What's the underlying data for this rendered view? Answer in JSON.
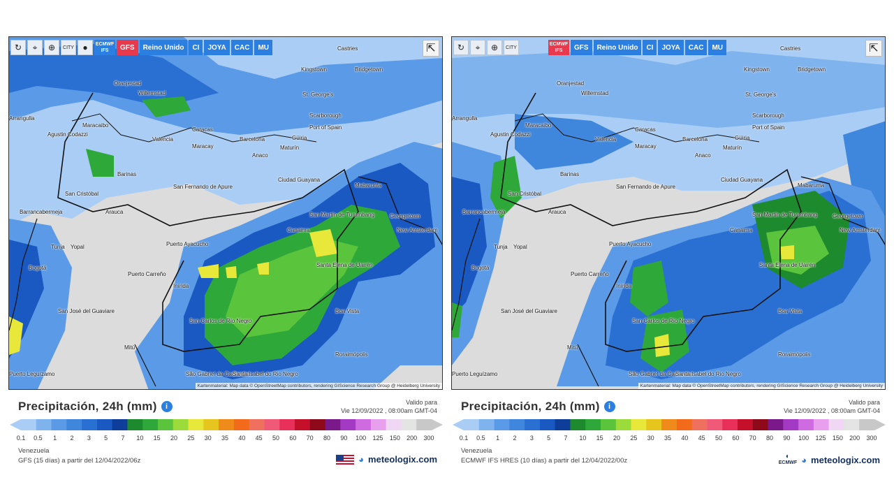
{
  "left": {
    "toolbar": {
      "city_label": "CITY",
      "models": [
        "ECMWF IFS",
        "GFS",
        "Reino Unido",
        "CI",
        "JOYA",
        "CAC",
        "MU"
      ],
      "active_model": "GFS"
    },
    "cities": [
      "Oranjestad",
      "Willemstad",
      "Castries",
      "Kingstown",
      "Bridgetown",
      "St. George's",
      "Scarborough",
      "Port of Spain",
      "Güiria",
      "Caracas",
      "Valencia",
      "Maracay",
      "Barcelona",
      "Maturín",
      "Anaco",
      "Maracaibo",
      "Arrangulla",
      "Agustin Codazzi",
      "Barinas",
      "San Cristóbal",
      "San Fernando de Apure",
      "Ciudad Guayana",
      "Mabaruma",
      "Barrancabermeja",
      "Arauca",
      "Canaima",
      "San Martín de Turumbang",
      "Georgetown",
      "New Amsterdam",
      "Tunja",
      "Yopal",
      "Puerto Ayacucho",
      "Bogotá",
      "Puerto Carreño",
      "Santa Elena de Uairén",
      "Inírida",
      "San José del Guaviare",
      "Boa Vista",
      "San Carlos de Río Negro",
      "Mitú",
      "Roraimópolis",
      "São Gabriel da Cachoeira",
      "Santa Isabel do Rio Negro",
      "Puerto Leguízamo"
    ],
    "attribution": "Kartenmaterial: Map data © OpenStreetMap contributors, rendering GIScience Research Group @ Heidelberg University",
    "title": "Precipitación, 24h (mm)",
    "valid_label": "Valido para",
    "valid_date": "Vie 12/09/2022 , 08:00am GMT-04",
    "region": "Venezuela",
    "model_info": "GFS (15 días) a partir del 12/04/2022/06z",
    "brand": "meteologix.com"
  },
  "right": {
    "toolbar": {
      "city_label": "CITY",
      "models": [
        "ECMWF IFS",
        "GFS",
        "Reino Unido",
        "CI",
        "JOYA",
        "CAC",
        "MU"
      ],
      "active_model": "ECMWF IFS"
    },
    "cities": [
      "Oranjestad",
      "Willemstad",
      "Castries",
      "Kingstown",
      "Bridgetown",
      "St. George's",
      "Scarborough",
      "Port of Spain",
      "Güiria",
      "Caracas",
      "Valencia",
      "Maracay",
      "Barcelona",
      "Maturín",
      "Anaco",
      "Maracaibo",
      "Arrangulla",
      "Agustin Codazzi",
      "Barinas",
      "San Cristóbal",
      "San Fernando de Apure",
      "Ciudad Guayana",
      "Mabaruma",
      "Barrancabermeja",
      "Arauca",
      "Canaima",
      "San Martín de Turumbang",
      "Georgetown",
      "New Amsterdam",
      "Tunja",
      "Yopal",
      "Puerto Ayacucho",
      "Bogotá",
      "Puerto Carreño",
      "Santa Elena de Uairén",
      "Inírida",
      "San José del Guaviare",
      "Boa Vista",
      "San Carlos de Río Negro",
      "Mitú",
      "Roraimópolis",
      "São Gabriel da Cachoeira",
      "Santa Isabel do Rio Negro",
      "Puerto Leguízamo"
    ],
    "attribution": "Kartenmaterial: Map data © OpenStreetMap contributors, rendering GIScience Research Group @ Heidelberg University",
    "title": "Precipitación, 24h (mm)",
    "valid_label": "Valido para",
    "valid_date": "Vie 12/09/2022 , 08:00am GMT-04",
    "region": "Venezuela",
    "model_info": "ECMWF IFS HRES (10 días) a partir del 12/04/2022/00z",
    "brand": "meteologix.com",
    "ecmwf_logo": "ECMWF"
  },
  "scale": {
    "ticks": [
      "0.1",
      "0.5",
      "1",
      "2",
      "3",
      "5",
      "7",
      "10",
      "15",
      "20",
      "25",
      "30",
      "35",
      "40",
      "45",
      "50",
      "60",
      "70",
      "80",
      "90",
      "100",
      "125",
      "150",
      "200",
      "300"
    ],
    "colors": [
      "#a9cdf5",
      "#7fb3ee",
      "#5a9ae6",
      "#3f86dd",
      "#2a70d3",
      "#1a58c2",
      "#0f3e9a",
      "#1e8a2e",
      "#2fa83a",
      "#5ac43c",
      "#9bdb3a",
      "#e8e83a",
      "#e6c51e",
      "#f08a1a",
      "#f36a1a",
      "#f07060",
      "#f05a78",
      "#e8305a",
      "#c4102a",
      "#8c0a1a",
      "#7a1a8a",
      "#a43ac4",
      "#d06ae0",
      "#e8a0ee",
      "#f0d8f4",
      "#e4e4e4",
      "#c8c8c8"
    ]
  }
}
